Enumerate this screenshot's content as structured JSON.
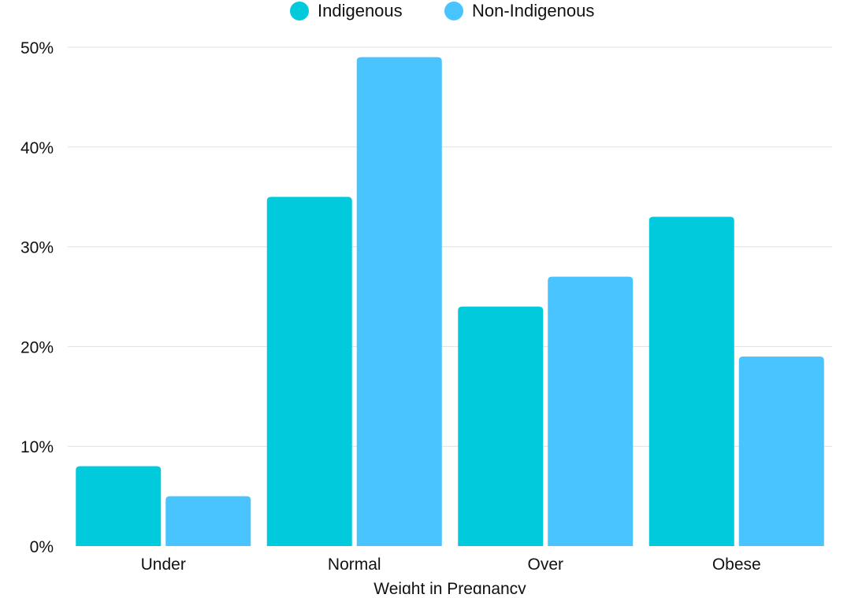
{
  "chart_data": {
    "type": "bar",
    "categories": [
      "Under",
      "Normal",
      "Over",
      "Obese"
    ],
    "series": [
      {
        "name": "Indigenous",
        "values": [
          8,
          35,
          24,
          33
        ],
        "color": "#00CADC"
      },
      {
        "name": "Non-Indigenous",
        "values": [
          5,
          49,
          27,
          19
        ],
        "color": "#49C4FF"
      }
    ],
    "title": "",
    "xlabel": "Weight in Pregnancy",
    "ylabel": "",
    "ylim": [
      0,
      50
    ],
    "yticks": [
      0,
      10,
      20,
      30,
      40,
      50
    ],
    "ytick_labels": [
      "0%",
      "10%",
      "20%",
      "30%",
      "40%",
      "50%"
    ],
    "grid": true,
    "legend_position": "top-center",
    "gridline_color": "#E0E0E0"
  }
}
